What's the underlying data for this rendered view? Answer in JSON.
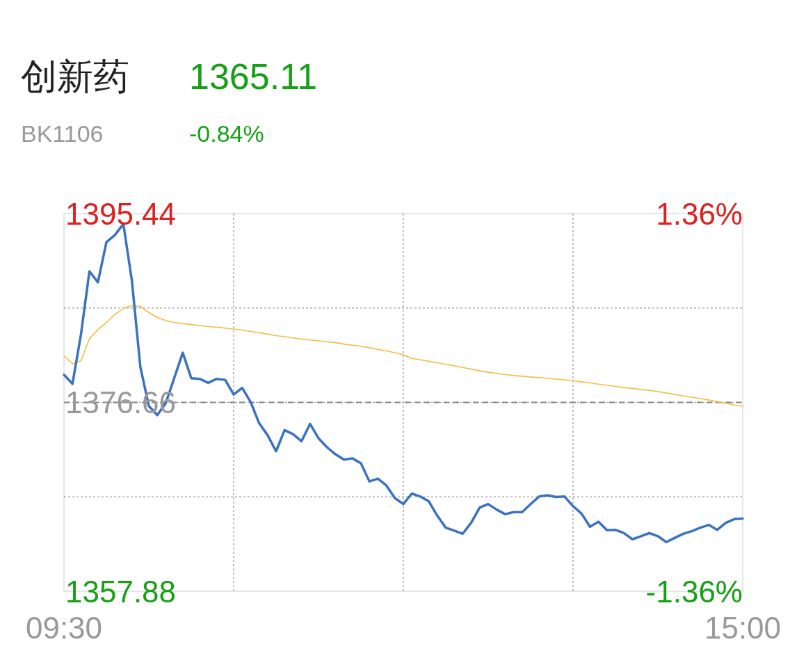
{
  "chart_data": {
    "type": "line",
    "title": "创新药",
    "subtitle": "BK1106",
    "annotations": [
      "1365.11",
      "-0.84%"
    ],
    "categories": [
      "09:30",
      null,
      null,
      null,
      null,
      null,
      null,
      null,
      null,
      null,
      null,
      null,
      null,
      null,
      null,
      null,
      null,
      null,
      null,
      null,
      null,
      null,
      null,
      null,
      null,
      null,
      null,
      null,
      null,
      null,
      null,
      null,
      null,
      null,
      null,
      null,
      null,
      null,
      null,
      null,
      null,
      null,
      null,
      null,
      null,
      null,
      null,
      null,
      null,
      null,
      null,
      null,
      null,
      null,
      null,
      null,
      null,
      null,
      null,
      null,
      null,
      null,
      null,
      null,
      null,
      null,
      null,
      null,
      null,
      null,
      null,
      null,
      null,
      null,
      null,
      null,
      null,
      null,
      null,
      null,
      "15:00"
    ],
    "ylim": [
      1357.88,
      1395.44
    ],
    "yticks": [
      {
        "value": 1357.88,
        "label": "1357.88"
      },
      {
        "value": 1367.27,
        "label": null
      },
      {
        "value": 1376.66,
        "label": "1376.66"
      },
      {
        "value": 1386.05,
        "label": null
      },
      {
        "value": 1395.44,
        "label": "1395.44"
      }
    ],
    "y2lim": [
      -1.36,
      1.36
    ],
    "y2ticks": [
      {
        "value": -1.36,
        "label": "-1.36%"
      },
      {
        "value": 1.36,
        "label": "1.36%"
      }
    ],
    "grid": true,
    "ref_lines": [
      {
        "axis": "y",
        "value": 1376.66,
        "color": "#888888",
        "line_style": "dashed"
      }
    ],
    "series": [
      {
        "color": "#3a72c0",
        "values": [
          1379.41,
          1378.5,
          1383.4,
          1389.7,
          1388.6,
          1392.6,
          1393.3,
          1394.4,
          1388.8,
          1380.2,
          1376.3,
          1375.4,
          1376.6,
          1379.1,
          1381.6,
          1379.07,
          1379.0,
          1378.6,
          1379.0,
          1378.9,
          1377.44,
          1378.1,
          1376.7,
          1374.6,
          1373.4,
          1371.8,
          1373.9,
          1373.5,
          1372.8,
          1374.52,
          1373.1,
          1372.2,
          1371.5,
          1370.97,
          1371.1,
          1370.6,
          1368.8,
          1369.08,
          1368.4,
          1367.15,
          1366.55,
          1367.6,
          1367.3,
          1366.82,
          1365.4,
          1364.2,
          1363.9,
          1363.6,
          1364.7,
          1366.2,
          1366.55,
          1366.0,
          1365.55,
          1365.75,
          1365.75,
          1366.55,
          1367.3,
          1367.43,
          1367.25,
          1367.3,
          1366.35,
          1365.6,
          1364.3,
          1364.8,
          1363.95,
          1363.99,
          1363.67,
          1363.05,
          1363.35,
          1363.67,
          1363.36,
          1362.77,
          1363.2,
          1363.6,
          1363.86,
          1364.2,
          1364.48,
          1363.99,
          1364.68,
          1365.05,
          1365.11
        ]
      },
      {
        "color": "#f5bc42",
        "values": [
          1381.3,
          1380.5,
          1380.8,
          1383.0,
          1383.9,
          1384.6,
          1385.4,
          1386.0,
          1386.3,
          1386.2,
          1385.6,
          1385.1,
          1384.8,
          1384.6,
          1384.5,
          1384.4,
          1384.3,
          1384.2,
          1384.15,
          1384.05,
          1383.96,
          1383.85,
          1383.72,
          1383.6,
          1383.45,
          1383.3,
          1383.2,
          1383.07,
          1382.96,
          1382.87,
          1382.78,
          1382.7,
          1382.6,
          1382.46,
          1382.35,
          1382.25,
          1382.1,
          1381.93,
          1381.78,
          1381.6,
          1381.4,
          1381.03,
          1380.9,
          1380.75,
          1380.6,
          1380.45,
          1380.3,
          1380.13,
          1379.97,
          1379.8,
          1379.66,
          1379.55,
          1379.43,
          1379.33,
          1379.26,
          1379.19,
          1379.13,
          1379.05,
          1378.98,
          1378.91,
          1378.82,
          1378.71,
          1378.6,
          1378.48,
          1378.37,
          1378.25,
          1378.14,
          1378.04,
          1377.95,
          1377.86,
          1377.73,
          1377.6,
          1377.46,
          1377.3,
          1377.18,
          1377.04,
          1376.9,
          1376.74,
          1376.57,
          1376.4,
          1376.28
        ]
      }
    ]
  }
}
